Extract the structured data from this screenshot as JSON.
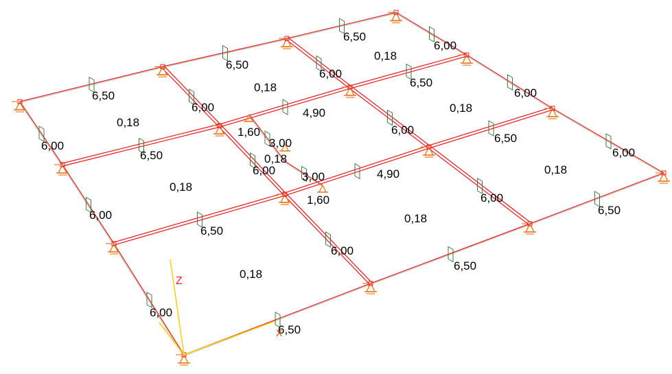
{
  "colors": {
    "background": "#ffffff",
    "beam": "#e8262a",
    "beam_alt": "#cc3333",
    "load_symbol": "#3e7d3e",
    "support": "#f07a1e",
    "axis_z": "#ff2222",
    "axis_x": "#ffcc00"
  },
  "icons": {
    "support": "fixed-support-icon",
    "load": "distributed-load-icon",
    "node": "node-square-icon"
  },
  "axes": {
    "z_label": "Z",
    "x_label": "X"
  },
  "labels": [
    "6,50",
    "6,00",
    "0,18",
    "6,00",
    "6,50",
    "0,18",
    "6,00",
    "6,50",
    "6,00",
    "0,18",
    "6,50",
    "4,90",
    "6,50",
    "0,18",
    "6,00",
    "1,60",
    "6,00",
    "3,00",
    "0,18",
    "6,50",
    "0,18",
    "6,00",
    "6,00",
    "3,00",
    "4,90",
    "0,18",
    "6,00",
    "1,60",
    "6,00",
    "6,50",
    "0,18",
    "6,50",
    "6,00",
    "6,50",
    "0,18",
    "6,00",
    "6,50"
  ]
}
